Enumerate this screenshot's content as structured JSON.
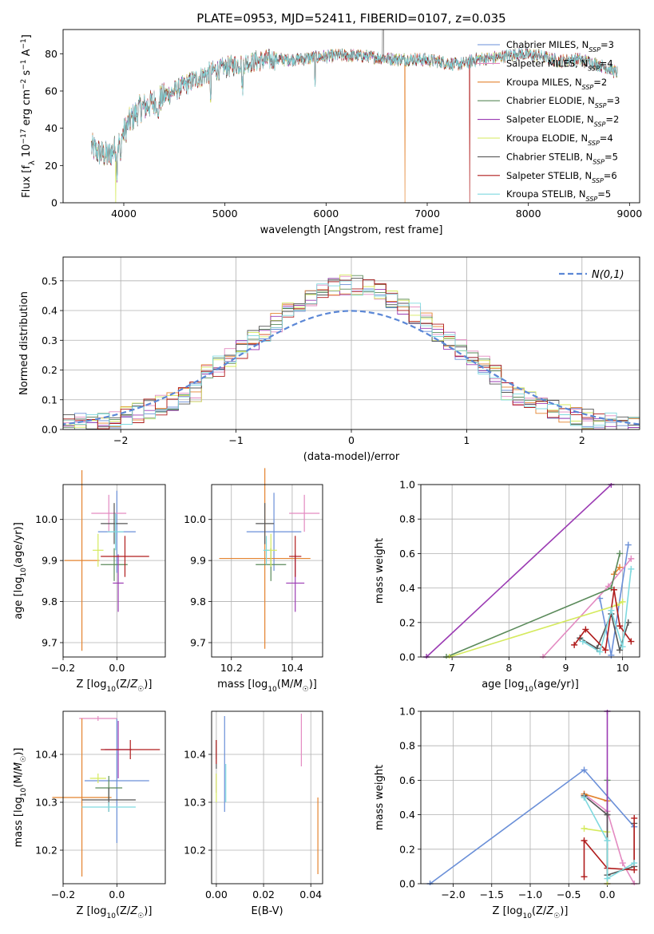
{
  "title": "PLATE=0953, MJD=52411, FIBERID=0107, z=0.035",
  "models": [
    {
      "name": "Chabrier MILES",
      "nssp": "3",
      "color": "#6a8fd8"
    },
    {
      "name": "Salpeter MILES",
      "nssp": "4",
      "color": "#e38ac1"
    },
    {
      "name": "Kroupa MILES",
      "nssp": "2",
      "color": "#e4832f"
    },
    {
      "name": "Chabrier ELODIE",
      "nssp": "3",
      "color": "#5a8a5a"
    },
    {
      "name": "Salpeter ELODIE",
      "nssp": "2",
      "color": "#9b3bb3"
    },
    {
      "name": "Kroupa ELODIE",
      "nssp": "4",
      "color": "#d5ea5e"
    },
    {
      "name": "Chabrier STELIB",
      "nssp": "5",
      "color": "#555555"
    },
    {
      "name": "Salpeter STELIB",
      "nssp": "6",
      "color": "#b01c1c"
    },
    {
      "name": "Kroupa STELIB",
      "nssp": "5",
      "color": "#7fd9df"
    }
  ],
  "chart_data": [
    {
      "id": "spectrum",
      "type": "line",
      "xlabel": "wavelength [Angstrom, rest frame]",
      "ylabel": "Flux [f_λ 10^-17 erg cm^-2 s^-1 A^-1]",
      "xlim": [
        3400,
        9100
      ],
      "ylim": [
        0,
        93
      ],
      "xticks": [
        4000,
        5000,
        6000,
        7000,
        8000,
        9000
      ],
      "yticks": [
        0,
        20,
        40,
        60,
        80
      ],
      "spectrum_anchor": {
        "x": [
          3680,
          3750,
          3850,
          3950,
          4050,
          4150,
          4300,
          4500,
          4700,
          4900,
          5100,
          5300,
          5500,
          5700,
          5900,
          6100,
          6300,
          6500,
          6700,
          6900,
          7100,
          7300,
          7500,
          7700,
          7900,
          8100,
          8300,
          8500,
          8700,
          8880
        ],
        "y": [
          30,
          27,
          25,
          32,
          43,
          50,
          54,
          60,
          66,
          71,
          74,
          76,
          77,
          77,
          78,
          79,
          79,
          78,
          77,
          77,
          76,
          74,
          77,
          78,
          80,
          79,
          76,
          77,
          74,
          70
        ]
      },
      "drop_features": [
        {
          "series": "Kroupa MILES",
          "x": 6780
        },
        {
          "series": "Salpeter STELIB",
          "x": 7420
        },
        {
          "series": "Kroupa ELODIE",
          "x": 3920
        }
      ],
      "grid": false,
      "legend_position": "top-right"
    },
    {
      "id": "residuals",
      "type": "step-histogram",
      "xlabel": "(data-model)/error",
      "ylabel": "Normed distribution",
      "xlim": [
        -2.5,
        2.5
      ],
      "ylim": [
        0,
        0.58
      ],
      "xticks": [
        -2,
        -1,
        0,
        1,
        2
      ],
      "yticks": [
        0.0,
        0.1,
        0.2,
        0.3,
        0.4,
        0.5
      ],
      "bin_width": 0.1,
      "gaussian_legend": "N(0,1)",
      "grid": true,
      "legend_position": "top-right"
    },
    {
      "id": "z-age",
      "type": "errorbar",
      "xlabel": "Z [log10(Z/Z☉)]",
      "ylabel": "age [log10(age/yr)]",
      "xlim": [
        -0.2,
        0.18
      ],
      "ylim": [
        9.665,
        10.085
      ],
      "xticks": [
        -0.2,
        0.0
      ],
      "yticks": [
        9.7,
        9.8,
        9.9,
        10.0
      ],
      "points": [
        {
          "x": 0.0,
          "y": 9.97,
          "xerr": 0.07,
          "yerr": 0.1
        },
        {
          "x": -0.03,
          "y": 10.015,
          "xerr": 0.065,
          "yerr": 0.045
        },
        {
          "x": -0.13,
          "y": 9.9,
          "xerr": 0.065,
          "yerr": 0.22
        },
        {
          "x": -0.01,
          "y": 9.89,
          "xerr": 0.05,
          "yerr": 0.04
        },
        {
          "x": 0.005,
          "y": 9.845,
          "xerr": 0.02,
          "yerr": 0.07
        },
        {
          "x": -0.07,
          "y": 9.925,
          "xerr": 0.02,
          "yerr": 0.04
        },
        {
          "x": -0.01,
          "y": 9.99,
          "xerr": 0.05,
          "yerr": 0.05
        },
        {
          "x": 0.03,
          "y": 9.91,
          "xerr": 0.09,
          "yerr": 0.05
        },
        {
          "x": -0.005,
          "y": 9.97,
          "xerr": 0.03,
          "yerr": 0.045
        }
      ],
      "grid": true
    },
    {
      "id": "mass-age",
      "type": "errorbar",
      "xlabel": "mass [log10(M/M☉)]",
      "ylabel": "",
      "xlim": [
        10.135,
        10.5
      ],
      "ylim": [
        9.665,
        10.085
      ],
      "xticks": [
        10.2,
        10.4
      ],
      "yticks": [
        9.7,
        9.8,
        9.9,
        10.0
      ],
      "points": [
        {
          "x": 10.34,
          "y": 9.97,
          "xerr": 0.09,
          "yerr": 0.095
        },
        {
          "x": 10.44,
          "y": 10.015,
          "xerr": 0.05,
          "yerr": 0.045
        },
        {
          "x": 10.31,
          "y": 9.905,
          "xerr": 0.15,
          "yerr": 0.22
        },
        {
          "x": 10.33,
          "y": 9.89,
          "xerr": 0.05,
          "yerr": 0.04
        },
        {
          "x": 10.41,
          "y": 9.845,
          "xerr": 0.03,
          "yerr": 0.07
        },
        {
          "x": 10.33,
          "y": 9.925,
          "xerr": 0.02,
          "yerr": 0.04
        },
        {
          "x": 10.31,
          "y": 9.99,
          "xerr": 0.03,
          "yerr": 0.05
        },
        {
          "x": 10.41,
          "y": 9.91,
          "xerr": 0.02,
          "yerr": 0.05
        },
        {
          "x": 10.315,
          "y": 9.925,
          "xerr": 0.01,
          "yerr": 0.035
        }
      ],
      "grid": true
    },
    {
      "id": "age-weight",
      "type": "line",
      "xlabel": "age [log10(age/yr)]",
      "ylabel": "mass weight",
      "xlim": [
        6.45,
        10.3
      ],
      "ylim": [
        0,
        1
      ],
      "xticks": [
        7,
        8,
        9,
        10
      ],
      "yticks": [
        0.0,
        0.2,
        0.4,
        0.6,
        0.8,
        1.0
      ],
      "series": [
        {
          "name": "Chabrier MILES",
          "x": [
            9.6,
            9.8,
            10.1
          ],
          "y": [
            0.34,
            0.01,
            0.65
          ]
        },
        {
          "name": "Salpeter MILES",
          "x": [
            8.6,
            9.75,
            10.15
          ],
          "y": [
            0.0,
            0.41,
            0.57
          ]
        },
        {
          "name": "Kroupa MILES",
          "x": [
            9.85,
            9.95
          ],
          "y": [
            0.48,
            0.52
          ]
        },
        {
          "name": "Chabrier ELODIE",
          "x": [
            6.9,
            9.8,
            9.95
          ],
          "y": [
            0.0,
            0.4,
            0.6
          ]
        },
        {
          "name": "Salpeter ELODIE",
          "x": [
            6.55,
            9.8
          ],
          "y": [
            0.0,
            1.0
          ]
        },
        {
          "name": "Kroupa ELODIE",
          "x": [
            6.95,
            9.9,
            10.0
          ],
          "y": [
            0.0,
            0.3,
            0.32
          ]
        },
        {
          "name": "Chabrier STELIB",
          "x": [
            9.25,
            9.55,
            9.8,
            9.95,
            10.1
          ],
          "y": [
            0.11,
            0.05,
            0.25,
            0.04,
            0.2
          ]
        },
        {
          "name": "Salpeter STELIB",
          "x": [
            9.15,
            9.35,
            9.7,
            9.85,
            9.95,
            10.15
          ],
          "y": [
            0.07,
            0.16,
            0.04,
            0.39,
            0.18,
            0.09
          ]
        },
        {
          "name": "Kroupa STELIB",
          "x": [
            9.3,
            9.6,
            9.8,
            10.0,
            10.15
          ],
          "y": [
            0.09,
            0.03,
            0.27,
            0.06,
            0.51
          ]
        }
      ],
      "grid": true
    },
    {
      "id": "z-mass",
      "type": "errorbar",
      "xlabel": "Z [log10(Z/Z☉)]",
      "ylabel": "mass [log10(M/M☉)]",
      "xlim": [
        -0.2,
        0.18
      ],
      "ylim": [
        10.13,
        10.49
      ],
      "xticks": [
        -0.2,
        0.0
      ],
      "yticks": [
        10.2,
        10.3,
        10.4
      ],
      "points": [
        {
          "x": 0.0,
          "y": 10.345,
          "xerr": 0.12,
          "yerr": 0.13
        },
        {
          "x": -0.07,
          "y": 10.475,
          "xerr": 0.07,
          "yerr": 0.005
        },
        {
          "x": -0.13,
          "y": 10.31,
          "xerr": 0.11,
          "yerr": 0.165
        },
        {
          "x": -0.03,
          "y": 10.33,
          "xerr": 0.05,
          "yerr": 0.025
        },
        {
          "x": 0.005,
          "y": 10.41,
          "xerr": 0.05,
          "yerr": 0.06
        },
        {
          "x": -0.07,
          "y": 10.35,
          "xerr": 0.03,
          "yerr": 0.01
        },
        {
          "x": -0.03,
          "y": 10.305,
          "xerr": 0.1,
          "yerr": 0.025
        },
        {
          "x": 0.05,
          "y": 10.41,
          "xerr": 0.11,
          "yerr": 0.02
        },
        {
          "x": -0.03,
          "y": 10.29,
          "xerr": 0.1,
          "yerr": 0.01
        }
      ],
      "grid": true
    },
    {
      "id": "ebv-mass",
      "type": "errorbar",
      "xlabel": "E(B-V)",
      "ylabel": "",
      "xlim": [
        -0.002,
        0.045
      ],
      "ylim": [
        10.13,
        10.49
      ],
      "xticks": [
        0.0,
        0.02,
        0.04
      ],
      "yticks": [
        10.2,
        10.3,
        10.4
      ],
      "points": [
        {
          "x": 0.0035,
          "y": 10.38,
          "xerr": 0.0,
          "yerr": 0.1
        },
        {
          "x": 0.036,
          "y": 10.43,
          "xerr": 0.0,
          "yerr": 0.055
        },
        {
          "x": 0.043,
          "y": 10.23,
          "xerr": 0.0,
          "yerr": 0.08
        },
        {
          "x": 0.0,
          "y": 10.41,
          "xerr": 0.0,
          "yerr": 0.02
        },
        {
          "x": 0.0,
          "y": 10.34,
          "xerr": 0.0,
          "yerr": 0.02
        },
        {
          "x": 0.0,
          "y": 10.33,
          "xerr": 0.0,
          "yerr": 0.03
        },
        {
          "x": 0.0,
          "y": 10.4,
          "xerr": 0.0,
          "yerr": 0.03
        },
        {
          "x": 0.0,
          "y": 10.405,
          "xerr": 0.0,
          "yerr": 0.025
        },
        {
          "x": 0.004,
          "y": 10.34,
          "xerr": 0.0,
          "yerr": 0.04
        }
      ],
      "grid": true
    },
    {
      "id": "z-weight",
      "type": "line",
      "xlabel": "Z [log10(Z/Z☉)]",
      "ylabel": "mass weight",
      "xlim": [
        -2.42,
        0.42
      ],
      "ylim": [
        0,
        1
      ],
      "xticks": [
        -2.0,
        -1.5,
        -1.0,
        -0.5,
        0.0
      ],
      "yticks": [
        0.0,
        0.2,
        0.4,
        0.6,
        0.8,
        1.0
      ],
      "series": [
        {
          "name": "Chabrier MILES",
          "x": [
            -2.3,
            -0.3,
            0.35
          ],
          "y": [
            0.0,
            0.66,
            0.33
          ]
        },
        {
          "name": "Salpeter MILES",
          "x": [
            -0.3,
            0.0,
            0.2,
            0.35
          ],
          "y": [
            0.52,
            0.42,
            0.12,
            0.0
          ]
        },
        {
          "name": "Kroupa MILES",
          "x": [
            -0.3,
            0.0
          ],
          "y": [
            0.52,
            0.48
          ]
        },
        {
          "name": "Chabrier ELODIE",
          "x": [
            0.0,
            0.0
          ],
          "y": [
            0.6,
            0.4
          ]
        },
        {
          "name": "Salpeter ELODIE",
          "x": [
            0.0,
            0.0
          ],
          "y": [
            1.0,
            0.0
          ]
        },
        {
          "name": "Kroupa ELODIE",
          "x": [
            -0.3,
            0.0,
            0.0
          ],
          "y": [
            0.32,
            0.3,
            0.0
          ]
        },
        {
          "name": "Chabrier STELIB",
          "x": [
            -0.3,
            0.0,
            0.0,
            0.35,
            0.35
          ],
          "y": [
            0.51,
            0.4,
            0.05,
            0.1,
            0.35
          ]
        },
        {
          "name": "Salpeter STELIB",
          "x": [
            -0.3,
            -0.3,
            0.0,
            0.35,
            0.35
          ],
          "y": [
            0.04,
            0.25,
            0.09,
            0.08,
            0.38
          ]
        },
        {
          "name": "Kroupa STELIB",
          "x": [
            -0.3,
            0.0,
            0.0,
            0.35
          ],
          "y": [
            0.5,
            0.25,
            0.03,
            0.12
          ]
        }
      ],
      "grid": true
    }
  ]
}
